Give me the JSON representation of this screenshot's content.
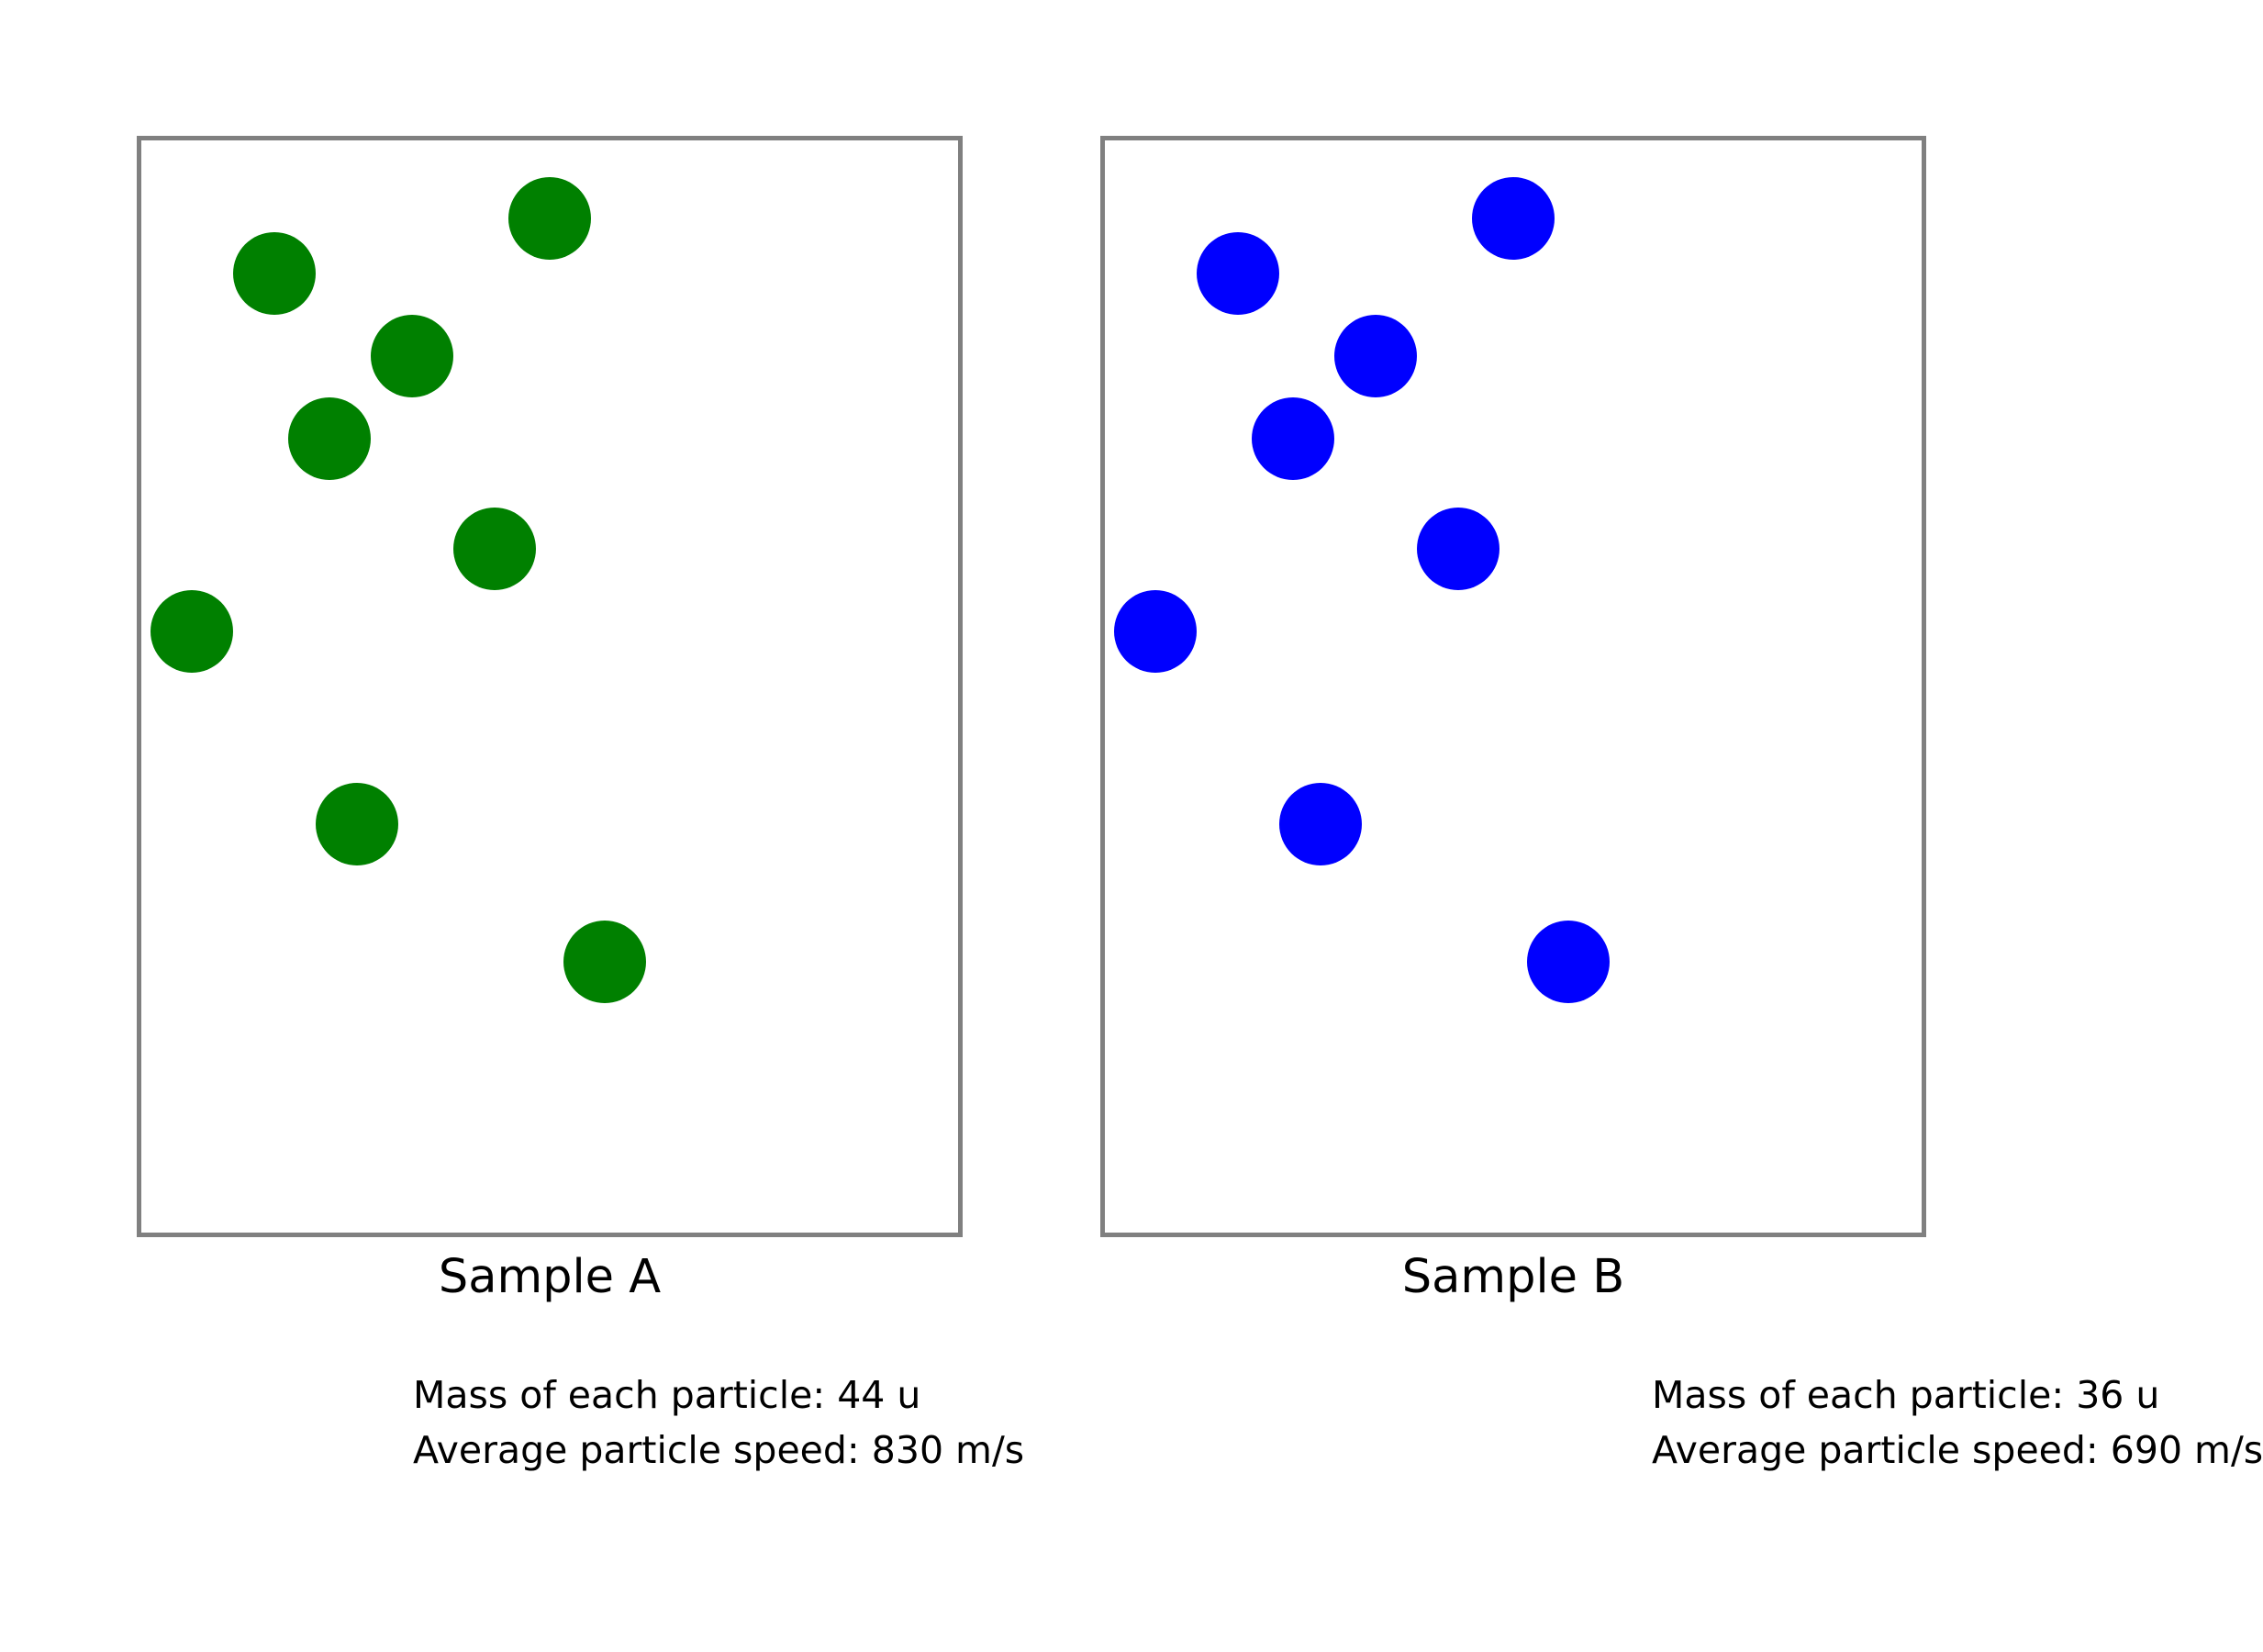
{
  "samples": [
    {
      "label": "Sample A",
      "particle_color": "#008000",
      "mass_text": "Mass of each particle: 44 u",
      "speed_text": "Average particle speed: 830 m/s"
    },
    {
      "label": "Sample B",
      "particle_color": "#0000ff",
      "mass_text": "Mass of each particle: 36 u",
      "speed_text": "Average particle speed: 690 m/s"
    }
  ]
}
